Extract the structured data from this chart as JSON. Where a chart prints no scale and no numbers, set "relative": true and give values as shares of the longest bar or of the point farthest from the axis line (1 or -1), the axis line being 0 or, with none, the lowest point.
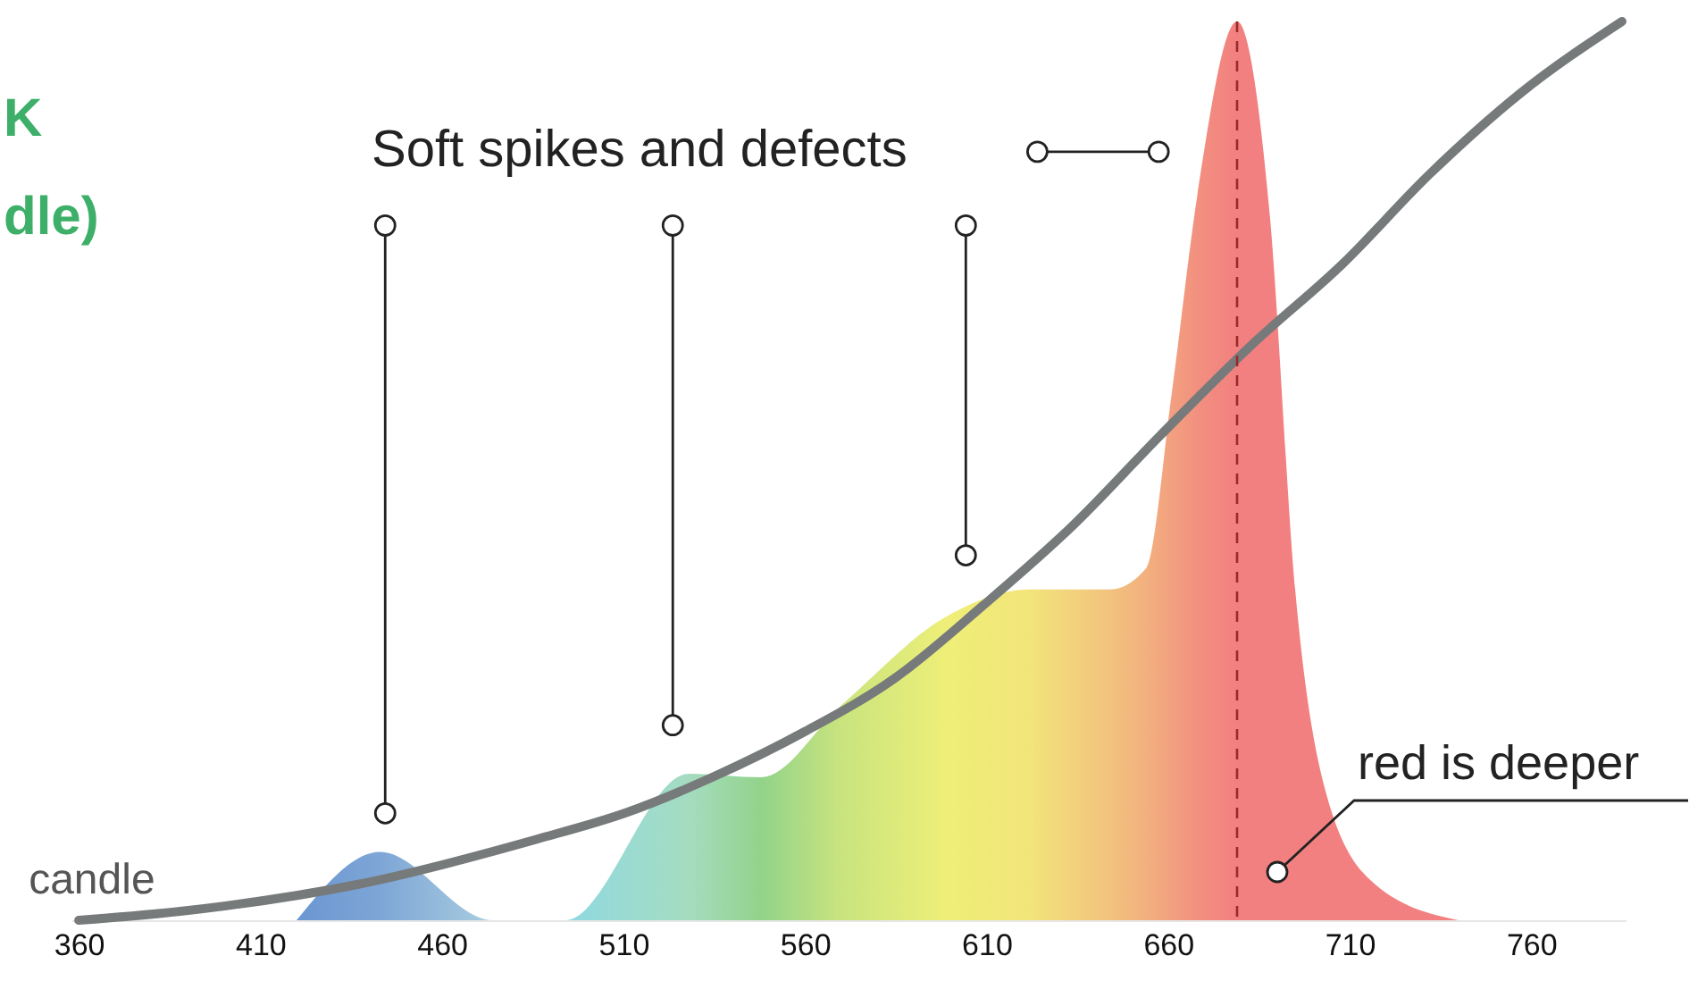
{
  "chart_data": {
    "type": "area",
    "relative": true,
    "xlim": [
      358,
      786
    ],
    "xticks": [
      360,
      410,
      460,
      510,
      560,
      610,
      660,
      710,
      760
    ],
    "tick_labels": "x",
    "grid": false,
    "annotations": [
      "K",
      "dle)",
      "Soft spikes and defects",
      "red is deeper"
    ],
    "ref_lines": [
      {
        "axis": "x",
        "value": 679,
        "color": "#9b2a2a",
        "line_style": "dashed"
      }
    ],
    "series": [
      {
        "x": [
          420,
          443,
          474,
          494,
          528,
          548,
          570,
          599,
          622,
          644,
          654,
          661,
          668,
          679,
          688,
          695,
          703,
          717,
          740
        ],
        "values": [
          0,
          0.076,
          0,
          0,
          0.163,
          0.159,
          0.239,
          0.338,
          0.368,
          0.368,
          0.392,
          0.586,
          0.805,
          1.0,
          0.785,
          0.368,
          0.149,
          0.04,
          0
        ],
        "colors": [
          "#6a96d2",
          "#7ea6d6",
          "#a9cde0",
          "#8fd9e2",
          "#a5dcc0",
          "#92d38a",
          "#c9e47e",
          "#eeef78",
          "#f2e47a",
          "#f2c27e",
          "#f2b07f",
          "#f2a07f",
          "#f29080",
          "#f28080",
          "#f28080",
          "#f28080",
          "#f28080",
          "#f28080",
          "#f28080"
        ]
      },
      {
        "type": "line",
        "name": "candle",
        "color": "#777a7b",
        "x": [
          360,
          388,
          437,
          486,
          511,
          535,
          560,
          585,
          609,
          634,
          658,
          683,
          708,
          732,
          757,
          785
        ],
        "values": [
          0,
          0.01,
          0.04,
          0.09,
          0.12,
          0.16,
          0.21,
          0.27,
          0.35,
          0.44,
          0.54,
          0.64,
          0.73,
          0.83,
          0.92,
          1.0
        ]
      }
    ]
  }
}
